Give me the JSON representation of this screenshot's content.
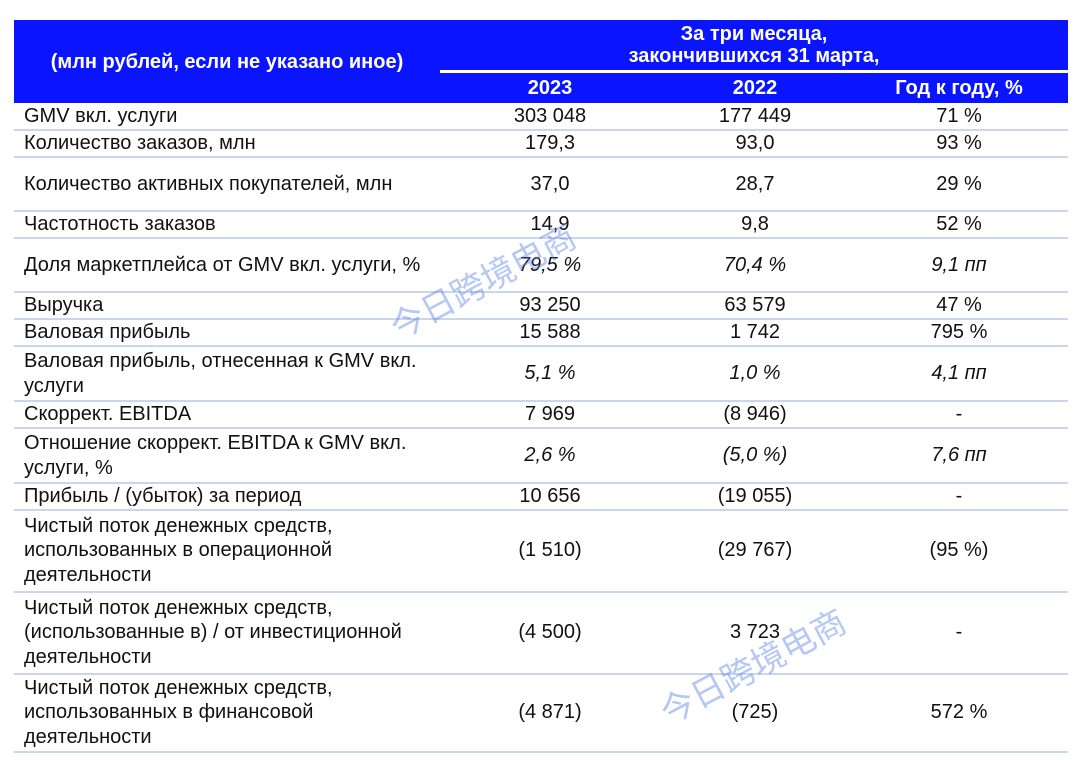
{
  "header": {
    "label": "(млн рублей, если не указано иное)",
    "period": "За три месяца, закончившихся 31 марта,",
    "period_line1": "За три месяца,",
    "period_line2": "закончившихся 31 марта,",
    "columns": [
      "2023",
      "2022",
      "Год к году, %"
    ]
  },
  "rows": [
    {
      "label": "GMV вкл. услуги",
      "v2023": "303 048",
      "v2022": "177 449",
      "yoy": "71 %",
      "italic": false
    },
    {
      "label": "Количество заказов, млн",
      "v2023": "179,3",
      "v2022": "93,0",
      "yoy": "93 %",
      "italic": false
    },
    {
      "label": "Количество активных покупателей, млн",
      "v2023": "37,0",
      "v2022": "28,7",
      "yoy": "29 %",
      "italic": false
    },
    {
      "label": "Частотность заказов",
      "v2023": "14,9",
      "v2022": "9,8",
      "yoy": "52 %",
      "italic": false
    },
    {
      "label": "Доля маркетплейса от GMV вкл. услуги, %",
      "v2023": "79,5 %",
      "v2022": "70,4 %",
      "yoy": "9,1 пп",
      "italic": true
    },
    {
      "label": "Выручка",
      "v2023": "93 250",
      "v2022": "63 579",
      "yoy": "47 %",
      "italic": false
    },
    {
      "label": "Валовая прибыль",
      "v2023": "15 588",
      "v2022": "1 742",
      "yoy": "795 %",
      "italic": false
    },
    {
      "label": "Валовая прибыль, отнесенная к GMV вкл. услуги",
      "v2023": "5,1 %",
      "v2022": "1,0 %",
      "yoy": "4,1 пп",
      "italic": true
    },
    {
      "label": "Скоррект. EBITDA",
      "v2023": "7 969",
      "v2022": "(8 946)",
      "yoy": "-",
      "italic": false
    },
    {
      "label": "Отношение скоррект. EBITDA к GMV вкл. услуги, %",
      "v2023": "2,6 %",
      "v2022": "(5,0 %)",
      "yoy": "7,6 пп",
      "italic": true
    },
    {
      "label": "Прибыль / (убыток) за период",
      "v2023": "10 656",
      "v2022": "(19 055)",
      "yoy": "-",
      "italic": false
    },
    {
      "label": "Чистый поток денежных средств, использованных в операционной деятельности",
      "v2023": "(1 510)",
      "v2022": "(29 767)",
      "yoy": "(95 %)",
      "italic": false
    },
    {
      "label": "Чистый поток денежных средств, (использованные в) / от инвестиционной деятельности",
      "v2023": "(4 500)",
      "v2022": "3 723",
      "yoy": "-",
      "italic": false
    },
    {
      "label": "Чистый поток денежных средств, использованных в финансовой деятельности",
      "v2023": "(4 871)",
      "v2022": "(725)",
      "yoy": "572 %",
      "italic": false
    }
  ],
  "watermark": "今日跨境电商",
  "colors": {
    "header_bg": "#0a14ff",
    "row_divider": "#c9d6ee"
  }
}
